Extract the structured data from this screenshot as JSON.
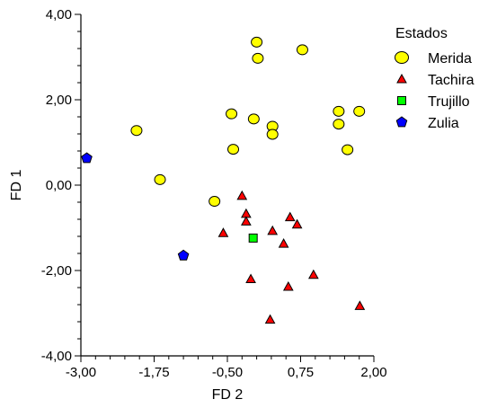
{
  "chart_data": {
    "type": "scatter",
    "title": "",
    "xlabel": "FD 2",
    "ylabel": "FD 1",
    "xlim": [
      -3.0,
      2.0
    ],
    "ylim": [
      -4.0,
      4.0
    ],
    "x_ticks": [
      -3.0,
      -1.75,
      -0.5,
      0.75,
      2.0
    ],
    "x_tick_labels": [
      "-3,00",
      "-1,75",
      "-0,50",
      "0,75",
      "2,00"
    ],
    "y_ticks": [
      -4.0,
      -2.0,
      0.0,
      2.0,
      4.0
    ],
    "y_tick_labels": [
      "-4,00",
      "-2,00",
      "0,00",
      "2,00",
      "4,00"
    ],
    "grid": false,
    "legend": {
      "title": "Estados",
      "placement": "top-right"
    },
    "series": [
      {
        "name": "Merida",
        "marker": "circle",
        "color": "#ffff00",
        "points": [
          [
            0.0,
            3.35
          ],
          [
            0.02,
            2.97
          ],
          [
            0.78,
            3.17
          ],
          [
            -2.05,
            1.28
          ],
          [
            -0.43,
            1.67
          ],
          [
            -0.05,
            1.55
          ],
          [
            0.27,
            1.38
          ],
          [
            0.27,
            1.19
          ],
          [
            1.4,
            1.73
          ],
          [
            1.4,
            1.43
          ],
          [
            1.75,
            1.73
          ],
          [
            -0.4,
            0.84
          ],
          [
            1.55,
            0.83
          ],
          [
            -1.65,
            0.13
          ],
          [
            -0.72,
            -0.38
          ]
        ]
      },
      {
        "name": "Tachira",
        "marker": "triangle",
        "color": "#ff0000",
        "points": [
          [
            -0.25,
            -0.25
          ],
          [
            -0.18,
            -0.67
          ],
          [
            -0.18,
            -0.85
          ],
          [
            -0.57,
            -1.12
          ],
          [
            0.27,
            -1.07
          ],
          [
            0.57,
            -0.75
          ],
          [
            0.69,
            -0.92
          ],
          [
            0.46,
            -1.37
          ],
          [
            -0.1,
            -2.2
          ],
          [
            0.54,
            -2.38
          ],
          [
            0.97,
            -2.1
          ],
          [
            1.76,
            -2.83
          ],
          [
            0.23,
            -3.15
          ]
        ]
      },
      {
        "name": "Trujillo",
        "marker": "square",
        "color": "#00ff00",
        "points": [
          [
            -0.06,
            -1.24
          ]
        ]
      },
      {
        "name": "Zulia",
        "marker": "pentagon",
        "color": "#0000ff",
        "points": [
          [
            -2.9,
            0.63
          ],
          [
            -1.25,
            -1.65
          ]
        ]
      }
    ]
  }
}
